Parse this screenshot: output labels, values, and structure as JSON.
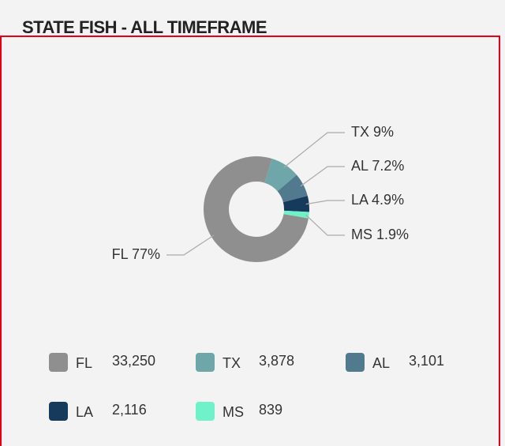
{
  "chart_data": {
    "type": "donut",
    "title": "STATE FISH - ALL TIMEFRAME",
    "categories": [
      "FL",
      "TX",
      "AL",
      "LA",
      "MS"
    ],
    "values": [
      33250,
      3878,
      3101,
      2116,
      839
    ],
    "value_labels": [
      "33,250",
      "3,878",
      "3,101",
      "2,116",
      "839"
    ],
    "percents": [
      77,
      9,
      7.2,
      4.9,
      1.9
    ],
    "percent_labels": [
      "77%",
      "9%",
      "7.2%",
      "4.9%",
      "1.9%"
    ],
    "colors": [
      "#8f8f8f",
      "#6fa6a9",
      "#517a8e",
      "#163a5c",
      "#6ff2c9"
    ]
  }
}
